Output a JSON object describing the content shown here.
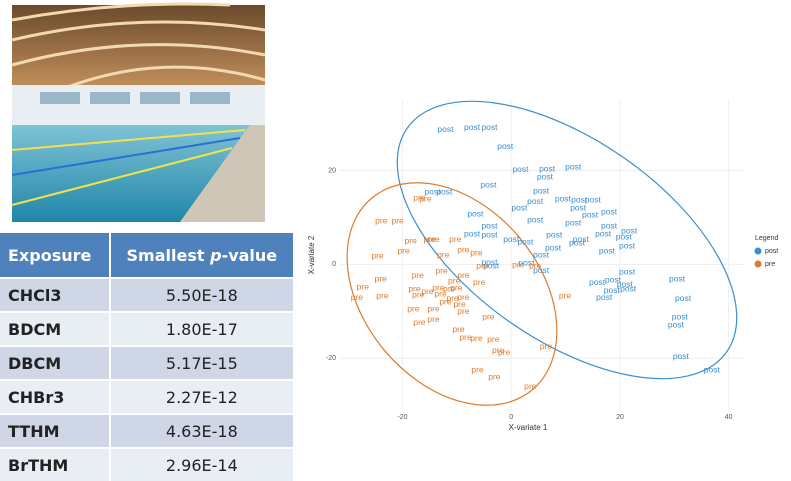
{
  "table": {
    "header": [
      "Exposure",
      [
        "Smallest ",
        "p",
        "-value"
      ]
    ],
    "rows": [
      [
        "CHCl3",
        "5.50E-18"
      ],
      [
        "BDCM",
        "1.80E-17"
      ],
      [
        "DBCM",
        "5.17E-15"
      ],
      [
        "CHBr3",
        "2.27E-12"
      ],
      [
        "TTHM",
        "4.63E-18"
      ],
      [
        "BrTHM",
        "2.96E-14"
      ]
    ]
  },
  "chart_data": {
    "type": "scatter",
    "x_label": "X-variate 1",
    "y_label": "X-variate 2",
    "legend_title": "Legend",
    "xlim": [
      -31.5,
      43
    ],
    "ylim": [
      -31,
      35
    ],
    "xticks": [
      -20,
      0,
      20,
      40
    ],
    "yticks": [
      -20,
      0,
      20
    ],
    "grid": true,
    "series": [
      {
        "name": "post",
        "color": "#3b8fd1",
        "x": [
          -12.1,
          -7.2,
          -4.0,
          -1.1,
          -12.3,
          -14.5,
          -4.2,
          1.7,
          6.6,
          11.4,
          6.2,
          5.5,
          1.5,
          4.4,
          -6.6,
          9.5,
          12.5,
          15.0,
          12.3,
          14.5,
          18.0,
          -4.0,
          -4.0,
          -7.2,
          0,
          4.4,
          11.4,
          18.0,
          21.7,
          12.8,
          16.9,
          20.7,
          7.9,
          7.7,
          2.6,
          12.1,
          -3.7,
          2.8,
          5.5,
          5.5,
          17.6,
          21.3,
          21.3,
          18.7,
          15.8,
          20.9,
          30.5,
          18.5,
          21.5,
          17.1,
          31.6,
          31.0,
          30.3,
          31.2,
          36.9,
          -4.0
        ],
        "values": [
          28.7,
          29.1,
          29.1,
          25.0,
          15.4,
          15.4,
          16.9,
          20.1,
          20.3,
          20.7,
          18.6,
          15.6,
          12.0,
          13.3,
          10.7,
          13.9,
          13.7,
          13.7,
          12.0,
          10.5,
          11.1,
          8.1,
          6.2,
          6.4,
          5.3,
          9.4,
          8.8,
          8.1,
          7.1,
          5.3,
          6.4,
          5.8,
          6.2,
          3.4,
          4.7,
          4.5,
          -0.4,
          0.2,
          1.9,
          -1.3,
          2.8,
          3.9,
          -1.7,
          -3.4,
          -3.9,
          -4.3,
          -3.2,
          -5.6,
          -5.3,
          -7.1,
          -7.3,
          -11.3,
          -13.0,
          -19.7,
          -22.5,
          0.4
        ]
      },
      {
        "name": "pre",
        "color": "#e07b2a",
        "x": [
          -23.9,
          -20.9,
          -16.9,
          -15.8,
          -15.0,
          -18.5,
          -24.6,
          -19.8,
          -14.3,
          -10.3,
          -12.5,
          -8.8,
          -6.4,
          -5.3,
          -8.8,
          -12.8,
          -17.2,
          -5.9,
          -24.0,
          -28.4,
          -23.7,
          -27.3,
          -17.8,
          -17.1,
          -15.4,
          -13.4,
          -11.4,
          -10.5,
          -13.0,
          -10.8,
          -8.8,
          -9.5,
          -12.1,
          -14.3,
          -18.0,
          -14.3,
          -16.9,
          -8.8,
          -4.2,
          -9.7,
          -8.4,
          -6.4,
          -3.3,
          -2.4,
          -1.3,
          1.3,
          4.4,
          6.4,
          9.9,
          -6.2,
          -3.1,
          3.5,
          -10.1
        ],
        "values": [
          9.2,
          9.2,
          14.1,
          13.9,
          5.3,
          4.9,
          1.7,
          2.8,
          5.3,
          5.3,
          1.9,
          3.0,
          2.4,
          -0.4,
          -2.4,
          -1.5,
          -2.4,
          -3.9,
          -3.2,
          -7.1,
          -6.8,
          -4.9,
          -5.3,
          -6.6,
          -5.8,
          -5.1,
          -5.3,
          -3.6,
          -6.4,
          -7.3,
          -7.1,
          -8.6,
          -8.1,
          -9.6,
          -9.6,
          -11.8,
          -12.4,
          -10.1,
          -11.3,
          -13.9,
          -15.6,
          -15.8,
          -16.0,
          -18.4,
          -18.8,
          -0.2,
          -0.4,
          -17.5,
          -6.8,
          -22.5,
          -24.0,
          -26.1,
          -5.1
        ]
      }
    ]
  }
}
